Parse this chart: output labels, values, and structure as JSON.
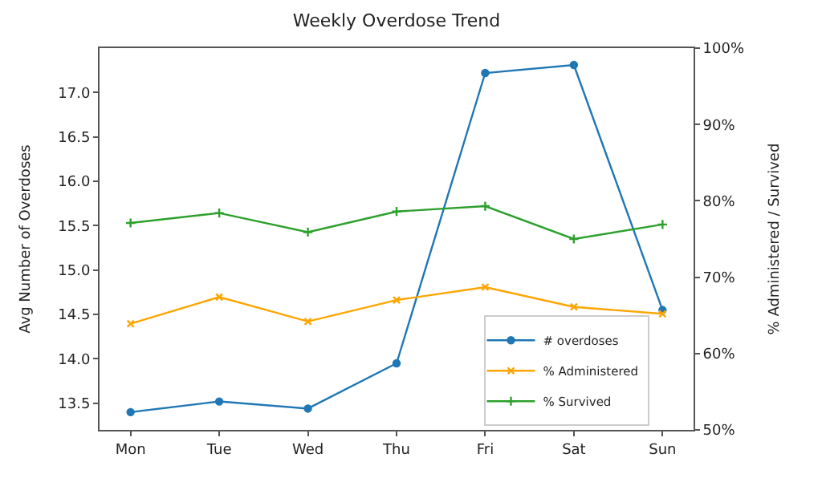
{
  "chart_data": {
    "type": "line",
    "title": "Weekly Overdose Trend",
    "ylabel": "Avg Number of Overdoses",
    "y2label": "% Administered / Survived",
    "categories": [
      "Mon",
      "Tue",
      "Wed",
      "Thu",
      "Fri",
      "Sat",
      "Sun"
    ],
    "series": [
      {
        "name": "# overdoses",
        "color": "#1f77b4",
        "marker": "circle",
        "values": [
          13.4,
          13.52,
          13.44,
          13.95,
          17.22,
          17.31,
          14.55
        ]
      },
      {
        "name": "% Administered",
        "color": "#ffa500",
        "marker": "cross",
        "axis": "y2",
        "values": [
          63.9,
          67.4,
          64.2,
          67.0,
          68.7,
          66.1,
          65.2
        ]
      },
      {
        "name": "% Survived",
        "color": "#2ca02c",
        "marker": "plus",
        "axis": "y2",
        "values": [
          77.1,
          78.4,
          75.9,
          78.6,
          79.3,
          75.0,
          76.9
        ]
      }
    ],
    "ylim": [
      13.2,
      17.5
    ],
    "yticks": [
      {
        "value": 13.5,
        "label": "13.5"
      },
      {
        "value": 14,
        "label": "14.0"
      },
      {
        "value": 14.5,
        "label": "14.5"
      },
      {
        "value": 15,
        "label": "15.0"
      },
      {
        "value": 15.5,
        "label": "15.5"
      },
      {
        "value": 16,
        "label": "16.0"
      },
      {
        "value": 16.5,
        "label": "16.5"
      },
      {
        "value": 17,
        "label": "17.0"
      }
    ],
    "y2lim": [
      50,
      100
    ],
    "y2ticks": [
      {
        "value": 50,
        "label": "50%"
      },
      {
        "value": 60,
        "label": "60%"
      },
      {
        "value": 70,
        "label": "70%"
      },
      {
        "value": 80,
        "label": "80%"
      },
      {
        "value": 90,
        "label": "90%"
      },
      {
        "value": 100,
        "label": "100%"
      }
    ],
    "legend": "bottom right",
    "line_style": "solid"
  }
}
